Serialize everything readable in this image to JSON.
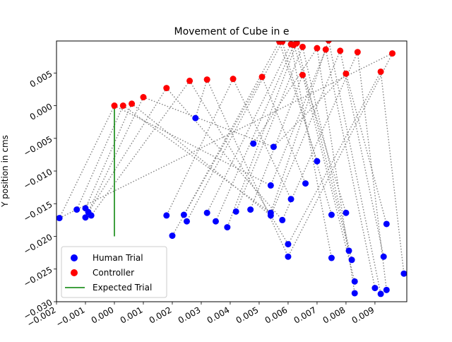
{
  "chart_data": {
    "type": "scatter",
    "title": "Movement of Cube in e",
    "xlabel": "",
    "ylabel": "Y position in cms",
    "xlim": [
      -0.002,
      0.0101
    ],
    "ylim": [
      -0.03,
      0.0099
    ],
    "x_ticks": [
      -0.002,
      -0.001,
      0.0,
      0.001,
      0.002,
      0.003,
      0.004,
      0.005,
      0.006,
      0.007,
      0.008,
      0.009
    ],
    "x_tick_labels": [
      "−0.002",
      "−0.001",
      "0.000",
      "0.001",
      "0.002",
      "0.003",
      "0.004",
      "0.005",
      "0.006",
      "0.007",
      "0.008",
      "0.009"
    ],
    "y_ticks": [
      -0.03,
      -0.025,
      -0.02,
      -0.015,
      -0.01,
      -0.005,
      0.0,
      0.005
    ],
    "y_tick_labels": [
      "−0.030",
      "−0.025",
      "−0.020",
      "−0.015",
      "−0.010",
      "−0.005",
      "0.000",
      "0.005"
    ],
    "grid": false,
    "legend_position": "lower-left",
    "legend": [
      {
        "label": "Human Trial",
        "marker": "circle",
        "color": "#0000ff"
      },
      {
        "label": "Controller",
        "marker": "circle",
        "color": "#ff0000"
      },
      {
        "label": "Expected Trial",
        "marker": "line",
        "color": "#008000"
      }
    ],
    "connector_color": "#808080",
    "series": [
      {
        "name": "Human Trial",
        "color": "#0000ff",
        "points": [
          [
            -0.0019,
            -0.0172
          ],
          [
            -0.0013,
            -0.0159
          ],
          [
            -0.001,
            -0.0157
          ],
          [
            -0.001,
            -0.0171
          ],
          [
            -0.0009,
            -0.0163
          ],
          [
            -0.0008,
            -0.0168
          ],
          [
            0.0028,
            -0.0019
          ],
          [
            0.0018,
            -0.0168
          ],
          [
            0.002,
            -0.0199
          ],
          [
            0.0024,
            -0.0167
          ],
          [
            0.0025,
            -0.0177
          ],
          [
            0.0032,
            -0.0164
          ],
          [
            0.0035,
            -0.0177
          ],
          [
            0.0039,
            -0.0186
          ],
          [
            0.0042,
            -0.0162
          ],
          [
            0.0047,
            -0.0159
          ],
          [
            0.0048,
            -0.0058
          ],
          [
            0.0054,
            -0.0122
          ],
          [
            0.0054,
            -0.0164
          ],
          [
            0.0054,
            -0.0168
          ],
          [
            0.0055,
            -0.0063
          ],
          [
            0.0058,
            -0.0175
          ],
          [
            0.006,
            -0.0212
          ],
          [
            0.006,
            -0.0231
          ],
          [
            0.0061,
            -0.0143
          ],
          [
            0.0066,
            -0.0119
          ],
          [
            0.007,
            -0.0085
          ],
          [
            0.0075,
            -0.0167
          ],
          [
            0.0075,
            -0.0233
          ],
          [
            0.008,
            -0.0164
          ],
          [
            0.0081,
            -0.0222
          ],
          [
            0.0082,
            -0.0236
          ],
          [
            0.0083,
            -0.0269
          ],
          [
            0.0083,
            -0.0287
          ],
          [
            0.009,
            -0.0279
          ],
          [
            0.0092,
            -0.0288
          ],
          [
            0.0093,
            -0.0231
          ],
          [
            0.0094,
            -0.0181
          ],
          [
            0.0094,
            -0.0282
          ],
          [
            0.01,
            -0.0257
          ]
        ]
      },
      {
        "name": "Controller",
        "color": "#ff0000",
        "points": [
          [
            0.0,
            0.0
          ],
          [
            0.0003,
            0.0
          ],
          [
            0.0006,
            0.0003
          ],
          [
            0.001,
            0.0013
          ],
          [
            0.0018,
            0.0027
          ],
          [
            0.0026,
            0.0038
          ],
          [
            0.0032,
            0.004
          ],
          [
            0.0041,
            0.0041
          ],
          [
            0.0051,
            0.0044
          ],
          [
            0.0057,
            0.0098
          ],
          [
            0.0058,
            0.0098
          ],
          [
            0.0061,
            0.0094
          ],
          [
            0.0062,
            0.0093
          ],
          [
            0.0063,
            0.0096
          ],
          [
            0.0065,
            0.009
          ],
          [
            0.0065,
            0.0047
          ],
          [
            0.007,
            0.0088
          ],
          [
            0.0073,
            0.0086
          ],
          [
            0.0074,
            0.01
          ],
          [
            0.0078,
            0.0084
          ],
          [
            0.008,
            0.0049
          ],
          [
            0.0084,
            0.0082
          ],
          [
            0.0092,
            0.0052
          ],
          [
            0.0096,
            0.008
          ]
        ]
      },
      {
        "name": "Expected Trial",
        "color": "#008000",
        "type": "line",
        "points": [
          [
            0.0,
            0.0
          ],
          [
            0.0,
            -0.02
          ]
        ]
      }
    ]
  }
}
